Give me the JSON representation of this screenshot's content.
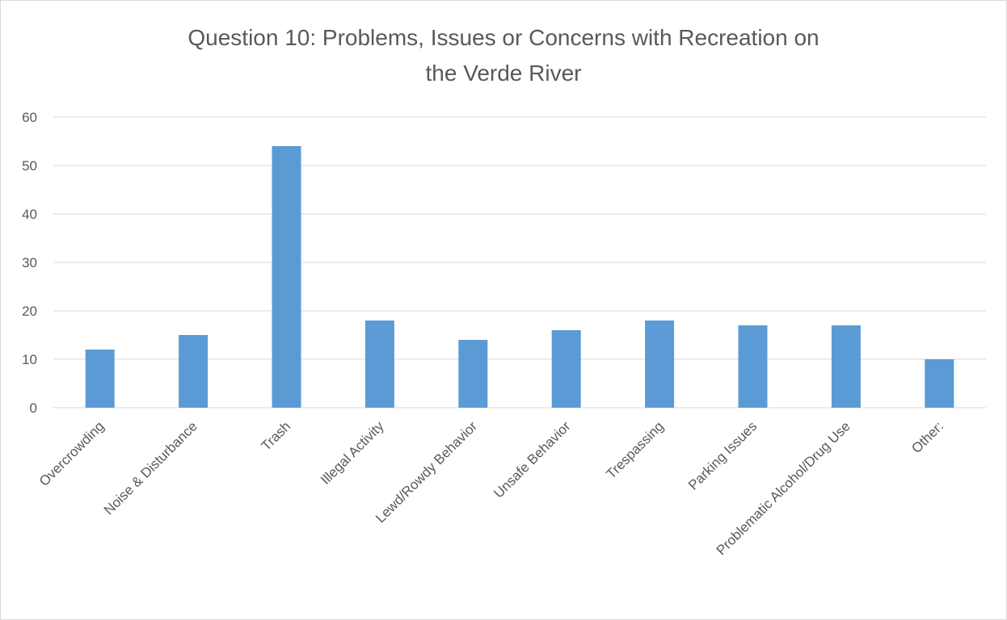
{
  "chart_data": {
    "type": "bar",
    "title_lines": [
      "Question 10: Problems, Issues or Concerns with Recreation on",
      "the Verde River"
    ],
    "categories": [
      "Overcrowding",
      "Noise & Disturbance",
      "Trash",
      "Illegal Activity",
      "Lewd/Rowdy Behavior",
      "Unsafe Behavior",
      "Trespassing",
      "Parking Issues",
      "Problematic Alcohol/Drug Use",
      "Other:"
    ],
    "values": [
      12,
      15,
      54,
      18,
      14,
      16,
      18,
      17,
      17,
      10
    ],
    "ylim": [
      0,
      60
    ],
    "yticks": [
      0,
      10,
      20,
      30,
      40,
      50,
      60
    ],
    "grid": true,
    "legend": "none",
    "bar_color": "#5b9bd5"
  }
}
